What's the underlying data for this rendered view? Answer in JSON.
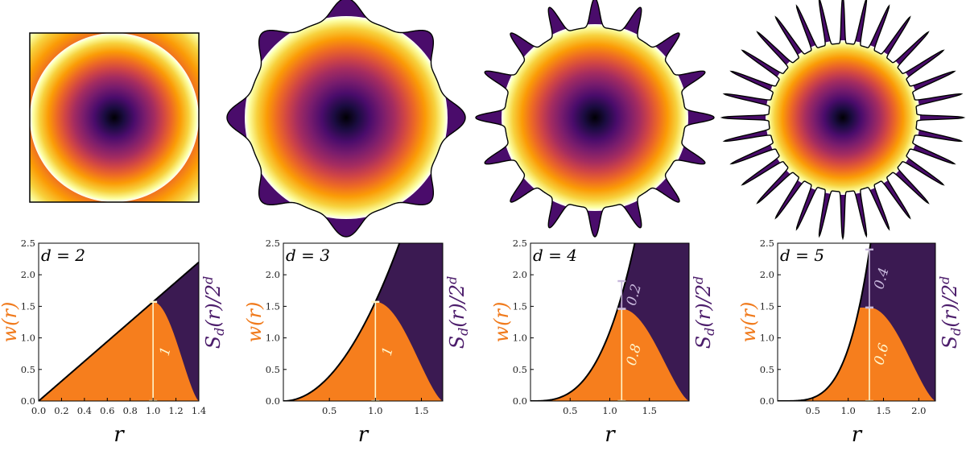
{
  "colors": {
    "orange": "#f67e1d",
    "purple": "#3b1a52",
    "w_label": "#f07a1c",
    "s_label": "#4c1d6b",
    "bar_light": "#fff6cc",
    "bar_lavender": "#c8b8dc"
  },
  "chart_data": [
    {
      "type": "area",
      "d_label": "d = 2",
      "xlabel": "r",
      "ylabel_left": "w(r)",
      "ylabel_right": "S_d(r)/2^d",
      "xlim": [
        0,
        1.4
      ],
      "ylim": [
        0,
        2.5
      ],
      "xticks": [
        "0.0",
        "0.2",
        "0.4",
        "0.6",
        "0.8",
        "1.0",
        "1.2",
        "1.4"
      ],
      "xtick_values": [
        0,
        0.2,
        0.4,
        0.6,
        0.8,
        1.0,
        1.2,
        1.4
      ],
      "yticks": [
        "0.0",
        "0.5",
        "1.0",
        "1.5",
        "2.0",
        "2.5"
      ],
      "ytick_values": [
        0,
        0.5,
        1.0,
        1.5,
        2.0,
        2.5
      ],
      "r_marker": 1.0,
      "marker_top": 1.571,
      "segments": [
        {
          "from": 0,
          "to": 1.571,
          "label": "1"
        }
      ],
      "grid": false
    },
    {
      "type": "area",
      "d_label": "d = 3",
      "xlabel": "r",
      "ylabel_left": "w(r)",
      "ylabel_right": "S_d(r)/2^d",
      "xlim": [
        0,
        1.732
      ],
      "ylim": [
        0,
        2.5
      ],
      "xticks": [
        "0.5",
        "1.0",
        "1.5"
      ],
      "xtick_values": [
        0.5,
        1.0,
        1.5
      ],
      "yticks": [
        "0.0",
        "0.5",
        "1.0",
        "1.5",
        "2.0",
        "2.5"
      ],
      "ytick_values": [
        0,
        0.5,
        1.0,
        1.5,
        2.0,
        2.5
      ],
      "r_marker": 1.0,
      "marker_top": 1.571,
      "segments": [
        {
          "from": 0,
          "to": 1.571,
          "label": "1"
        }
      ],
      "grid": false
    },
    {
      "type": "area",
      "d_label": "d = 4",
      "xlabel": "r",
      "ylabel_left": "w(r)",
      "ylabel_right": "S_d(r)/2^d",
      "xlim": [
        0,
        2.0
      ],
      "ylim": [
        0,
        2.5
      ],
      "xticks": [
        "0.5",
        "1.0",
        "1.5"
      ],
      "xtick_values": [
        0.5,
        1.0,
        1.5
      ],
      "yticks": [
        "0.0",
        "0.5",
        "1.0",
        "1.5",
        "2.0",
        "2.5"
      ],
      "ytick_values": [
        0,
        0.5,
        1.0,
        1.5,
        2.0,
        2.5
      ],
      "r_marker": 1.15,
      "marker_top": 1.9,
      "segments": [
        {
          "from": 0,
          "to": 1.46,
          "label": "0.8"
        },
        {
          "from": 1.46,
          "to": 1.9,
          "label": "0.2"
        }
      ],
      "grid": false
    },
    {
      "type": "area",
      "d_label": "d = 5",
      "xlabel": "r",
      "ylabel_left": "w(r)",
      "ylabel_right": "S_d(r)/2^d",
      "xlim": [
        0,
        2.236
      ],
      "ylim": [
        0,
        2.5
      ],
      "xticks": [
        "0.5",
        "1.0",
        "1.5",
        "2.0"
      ],
      "xtick_values": [
        0.5,
        1.0,
        1.5,
        2.0
      ],
      "yticks": [
        "0.0",
        "0.5",
        "1.0",
        "1.5",
        "2.0",
        "2.5"
      ],
      "ytick_values": [
        0,
        0.5,
        1.0,
        1.5,
        2.0,
        2.5
      ],
      "r_marker": 1.3,
      "marker_top": 2.4,
      "segments": [
        {
          "from": 0,
          "to": 1.48,
          "label": "0.6"
        },
        {
          "from": 1.48,
          "to": 2.4,
          "label": "0.4"
        }
      ],
      "grid": false
    }
  ],
  "shapes": [
    {
      "name": "square-density-d2",
      "spikes": 4
    },
    {
      "name": "star-density-d3",
      "spikes": 8
    },
    {
      "name": "star-density-d4",
      "spikes": 16
    },
    {
      "name": "star-density-d5",
      "spikes": 32
    }
  ]
}
